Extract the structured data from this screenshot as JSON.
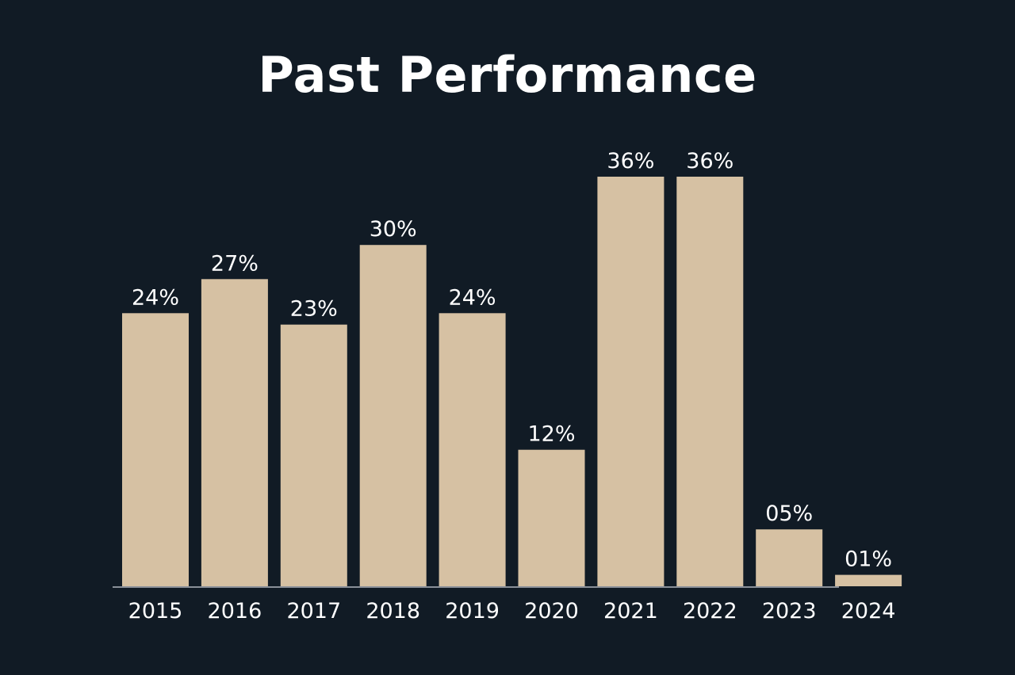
{
  "chart_data": {
    "type": "bar",
    "title": "Past Performance",
    "categories": [
      "2015",
      "2016",
      "2017",
      "2018",
      "2019",
      "2020",
      "2021",
      "2022",
      "2023",
      "2024"
    ],
    "values": [
      24,
      27,
      23,
      30,
      24,
      12,
      36,
      36,
      5,
      1
    ],
    "data_labels": [
      "24%",
      "27%",
      "23%",
      "30%",
      "24%",
      "12%",
      "36%",
      "36%",
      "05%",
      "01%"
    ],
    "xlabel": "",
    "ylabel": "",
    "ylim": [
      0,
      36
    ],
    "grid": false,
    "legend": "none",
    "colors": {
      "background": "#111b25",
      "bar": "#d6c1a3",
      "text": "#ffffff",
      "axis": "#8a9099"
    }
  }
}
